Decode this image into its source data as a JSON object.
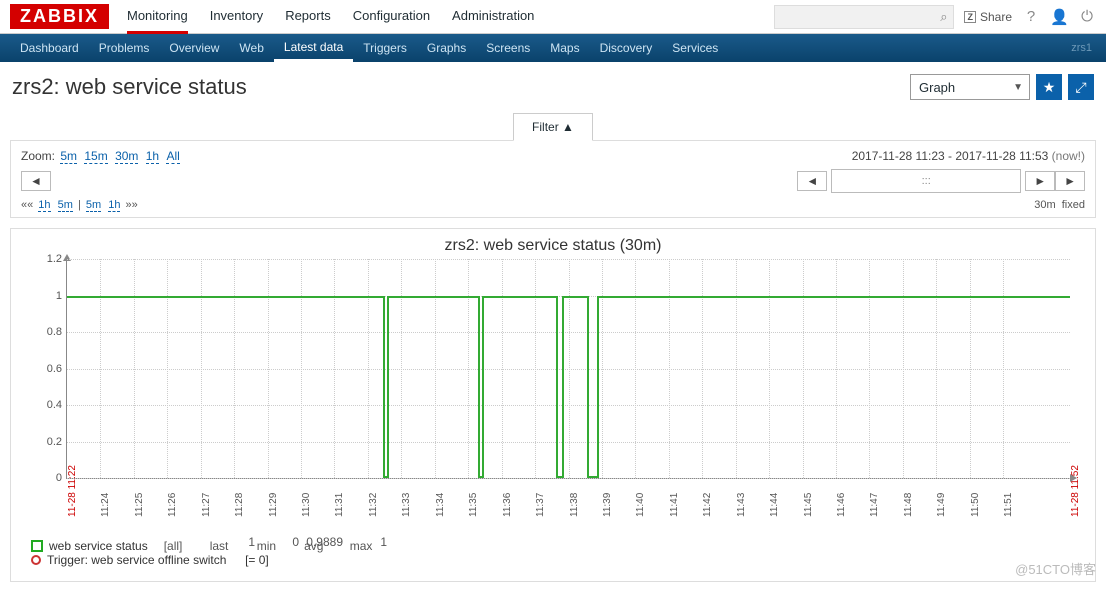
{
  "brand": "ZABBIX",
  "topnav": {
    "items": [
      "Monitoring",
      "Inventory",
      "Reports",
      "Configuration",
      "Administration"
    ],
    "active": 0
  },
  "share_label": "Share",
  "search": {
    "placeholder": ""
  },
  "subnav": {
    "items": [
      "Dashboard",
      "Problems",
      "Overview",
      "Web",
      "Latest data",
      "Triggers",
      "Graphs",
      "Screens",
      "Maps",
      "Discovery",
      "Services"
    ],
    "active": 4,
    "host": "zrs1"
  },
  "page_title": "zrs2: web service status",
  "view_select": "Graph",
  "filter_label": "Filter ▲",
  "controls": {
    "zoom_label": "Zoom:",
    "zoom_opts": [
      "5m",
      "15m",
      "30m",
      "1h",
      "All"
    ],
    "time_from": "2017-11-28 11:23",
    "time_to": "2017-11-28 11:53",
    "now": "(now!)",
    "nav_left": "«« 1h 5m | 5m 1h »»",
    "nav_left_parts": [
      "««",
      "1h",
      "5m",
      "|",
      "5m",
      "1h",
      "»»"
    ],
    "scroll_dots": ":::",
    "period": "30m",
    "mode": "fixed"
  },
  "chart": {
    "title": "zrs2: web service status (30m)",
    "type": "line-step",
    "y": {
      "min": 0,
      "max": 1.2,
      "ticks": [
        0,
        0.2,
        0.4,
        0.6,
        0.8,
        1.0,
        1.2
      ]
    },
    "x": {
      "start": "11-28 11:22",
      "end": "11-28 11:52",
      "ticks": [
        "11:24",
        "11:25",
        "11:26",
        "11:27",
        "11:28",
        "11:29",
        "11:30",
        "11:31",
        "11:32",
        "11:33",
        "11:34",
        "11:35",
        "11:36",
        "11:37",
        "11:38",
        "11:39",
        "11:40",
        "11:41",
        "11:42",
        "11:43",
        "11:44",
        "11:45",
        "11:46",
        "11:47",
        "11:48",
        "11:49",
        "11:50",
        "11:51"
      ]
    },
    "series_color": "#33aa33",
    "grid_color": "#cccccc",
    "background": "#ffffff",
    "segments_pct": [
      {
        "from": 0,
        "to": 31.5,
        "val": 1
      },
      {
        "from": 31.5,
        "to": 31.9,
        "val": 0
      },
      {
        "from": 31.9,
        "to": 41.0,
        "val": 1
      },
      {
        "from": 41.0,
        "to": 41.4,
        "val": 0
      },
      {
        "from": 41.4,
        "to": 48.8,
        "val": 1
      },
      {
        "from": 48.8,
        "to": 49.4,
        "val": 0
      },
      {
        "from": 49.4,
        "to": 51.8,
        "val": 1
      },
      {
        "from": 51.8,
        "to": 52.8,
        "val": 0
      },
      {
        "from": 52.8,
        "to": 100,
        "val": 1
      }
    ]
  },
  "legend": {
    "series_name": "web service status",
    "scope": "[all]",
    "headers": [
      "last",
      "min",
      "avg",
      "max"
    ],
    "values": [
      "1",
      "0",
      "0.9889",
      "1"
    ],
    "trigger_label": "Trigger: web service offline switch",
    "trigger_expr": "[= 0]"
  },
  "watermark": "@51CTO博客"
}
